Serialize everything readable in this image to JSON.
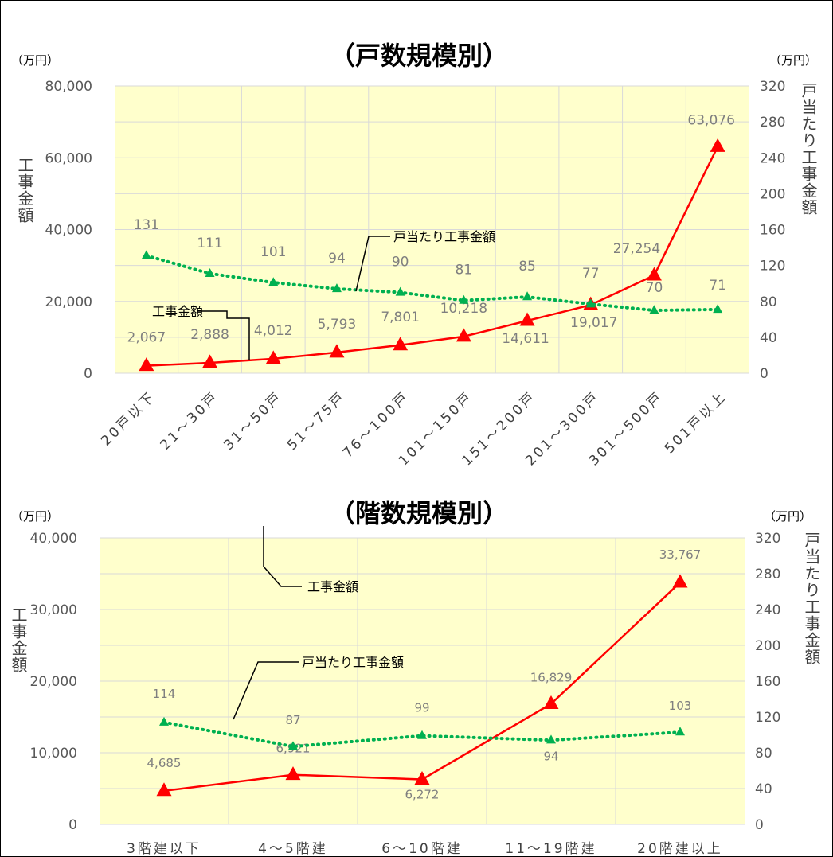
{
  "chart_data": [
    {
      "type": "line",
      "title": "（戸数規模別）",
      "unit_left": "（万円）",
      "unit_right": "（万円）",
      "ylabel": "工事金額",
      "y2label": "戸当たり工事金額",
      "categories": [
        "20戸以下",
        "21～30戸",
        "31～50戸",
        "51～75戸",
        "76～100戸",
        "101～150戸",
        "151～200戸",
        "201～300戸",
        "301～500戸",
        "501戸以上"
      ],
      "ylim": [
        0,
        80000
      ],
      "y_ticks": [
        "0",
        "20,000",
        "40,000",
        "60,000",
        "80,000"
      ],
      "y2lim": [
        0,
        320
      ],
      "y2_ticks": [
        "0",
        "40",
        "80",
        "120",
        "160",
        "200",
        "240",
        "280",
        "320"
      ],
      "grid": true,
      "background": "#ffffcc",
      "series": [
        {
          "name": "工事金額",
          "axis": "left",
          "color": "#ff0000",
          "style": "solid",
          "marker": "triangle",
          "values": [
            2067,
            2888,
            4012,
            5793,
            7801,
            10218,
            14611,
            19017,
            27254,
            63076
          ],
          "labels": [
            "2,067",
            "2,888",
            "4,012",
            "5,793",
            "7,801",
            "10,218",
            "14,611",
            "19,017",
            "27,254",
            "63,076"
          ]
        },
        {
          "name": "戸当たり工事金額",
          "axis": "right",
          "color": "#00b050",
          "style": "dotted",
          "marker": "triangle",
          "values": [
            131,
            111,
            101,
            94,
            90,
            81,
            85,
            77,
            70,
            71
          ],
          "labels": [
            "131",
            "111",
            "101",
            "94",
            "90",
            "81",
            "85",
            "77",
            "70",
            "71"
          ]
        }
      ]
    },
    {
      "type": "line",
      "title": "（階数規模別）",
      "unit_left": "（万円）",
      "unit_right": "（万円）",
      "ylabel": "工事金額",
      "y2label": "戸当たり工事金額",
      "categories": [
        "3階建以下",
        "4～5階建",
        "6～10階建",
        "11～19階建",
        "20階建以上"
      ],
      "ylim": [
        0,
        40000
      ],
      "y_ticks": [
        "0",
        "10,000",
        "20,000",
        "30,000",
        "40,000"
      ],
      "y2lim": [
        0,
        320
      ],
      "y2_ticks": [
        "0",
        "40",
        "80",
        "120",
        "160",
        "200",
        "240",
        "280",
        "320"
      ],
      "grid": true,
      "background": "#ffffcc",
      "series": [
        {
          "name": "工事金額",
          "axis": "left",
          "color": "#ff0000",
          "style": "solid",
          "marker": "triangle",
          "values": [
            4685,
            6921,
            6272,
            16829,
            33767
          ],
          "labels": [
            "4,685",
            "6,921",
            "6,272",
            "16,829",
            "33,767"
          ]
        },
        {
          "name": "戸当たり工事金額",
          "axis": "right",
          "color": "#00b050",
          "style": "dotted",
          "marker": "triangle",
          "values": [
            114,
            87,
            99,
            94,
            103
          ],
          "labels": [
            "114",
            "87",
            "99",
            "94",
            "103"
          ]
        }
      ]
    }
  ]
}
